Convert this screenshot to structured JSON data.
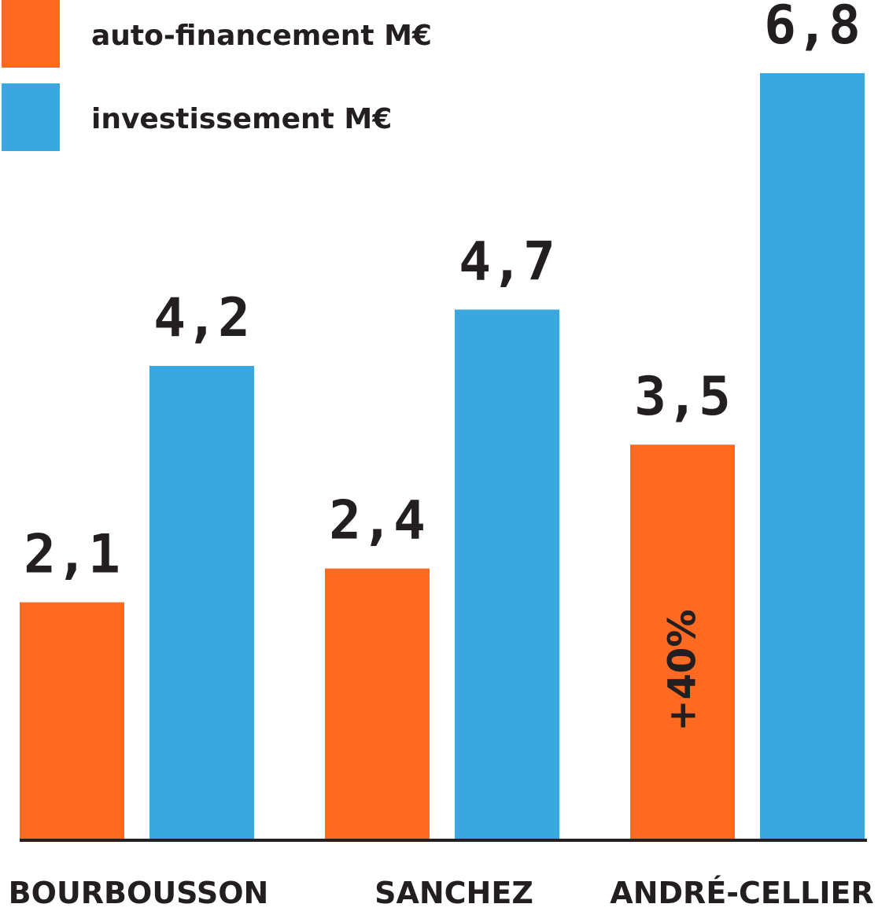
{
  "chart_data": {
    "type": "bar",
    "categories": [
      "BOURBOUSSON",
      "SANCHEZ",
      "ANDRÉ-CELLIER"
    ],
    "series": [
      {
        "name": "auto-financement M€",
        "color": "#ff6a22",
        "values": [
          2.1,
          2.4,
          3.5
        ],
        "labels": [
          "2,1",
          "2,4",
          "3,5"
        ]
      },
      {
        "name": "investissement M€",
        "color": "#39a8e0",
        "values": [
          4.2,
          4.7,
          6.8
        ],
        "labels": [
          "4,2",
          "4,7",
          "6,8"
        ]
      }
    ],
    "annotations": [
      {
        "text": "+40%",
        "category": "ANDRÉ-CELLIER",
        "series": "auto-financement M€",
        "orientation": "vertical"
      }
    ],
    "legend": "top-left",
    "grid": false,
    "ylim": [
      0,
      7.45
    ]
  }
}
